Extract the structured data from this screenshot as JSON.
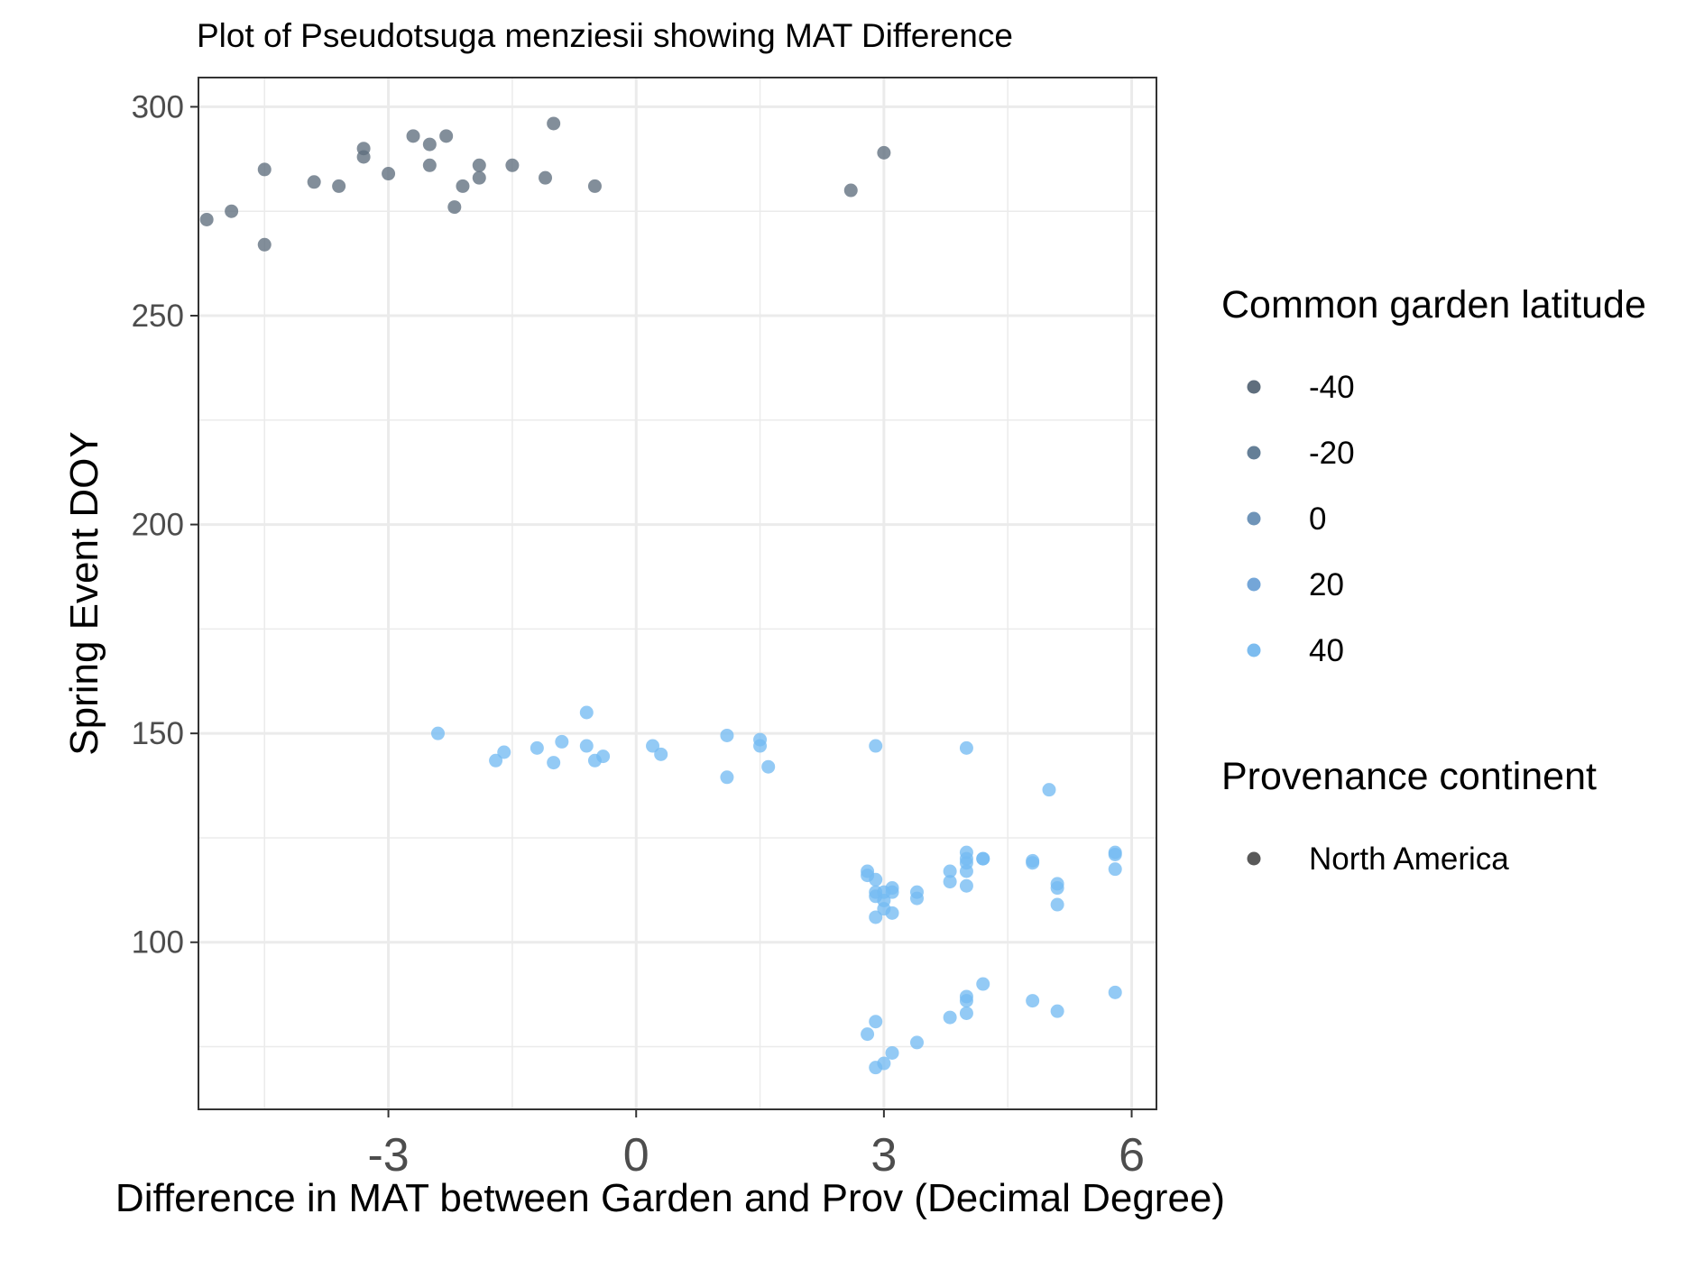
{
  "chart_data": {
    "type": "scatter",
    "title": "Plot of Pseudotsuga menziesii showing MAT Difference",
    "xlabel": "Difference in MAT between Garden and Prov (Decimal Degree)",
    "ylabel": "Spring Event DOY",
    "xlim": [
      -5.3,
      6.3
    ],
    "ylim": [
      60,
      307
    ],
    "x_ticks": [
      "-3",
      "0",
      "3",
      "6"
    ],
    "x_tick_values": [
      -3,
      0,
      3,
      6
    ],
    "y_ticks": [
      "100",
      "150",
      "200",
      "250",
      "300"
    ],
    "y_tick_values": [
      100,
      150,
      200,
      250,
      300
    ],
    "grid": true,
    "legend_position": "right",
    "legends": [
      {
        "title": "Common garden latitude",
        "entries": [
          {
            "label": "-40",
            "color": "#5f6e7d"
          },
          {
            "label": "-20",
            "color": "#657f97"
          },
          {
            "label": "0",
            "color": "#6f94b8"
          },
          {
            "label": "20",
            "color": "#74a6d8"
          },
          {
            "label": "40",
            "color": "#7cbcef"
          }
        ]
      },
      {
        "title": "Provenance continent",
        "entries": [
          {
            "label": "North America",
            "color": "#595959"
          }
        ]
      }
    ],
    "series": [
      {
        "latitude": -40,
        "color": "#5f6e7d",
        "x": [
          -5.2,
          -4.9,
          -4.5,
          -4.5,
          -3.9,
          -3.6,
          -3.3,
          -3.3,
          -3.0,
          -2.7,
          -2.5,
          -2.5,
          -2.3,
          -2.2,
          -2.1,
          -1.9,
          -1.9,
          -1.5,
          -1.1,
          -1.0,
          -0.5,
          2.6,
          3.0
        ],
        "y": [
          273,
          275,
          285,
          267,
          282,
          281,
          290,
          288,
          284,
          293,
          291,
          286,
          293,
          276,
          281,
          286,
          283,
          286,
          283,
          296,
          281,
          280,
          289
        ]
      },
      {
        "latitude": 40,
        "color": "#74bbf2",
        "x": [
          -2.4,
          -1.7,
          -1.6,
          -1.2,
          -1.0,
          -0.9,
          -0.6,
          -0.6,
          -0.5,
          -0.4,
          0.2,
          0.3,
          1.1,
          1.1,
          1.5,
          1.5,
          1.6,
          2.9,
          4.0,
          5.0,
          2.8,
          2.8,
          2.9,
          2.9,
          2.9,
          2.9,
          3.0,
          3.0,
          3.0,
          3.1,
          3.1,
          3.1,
          3.4,
          3.4,
          3.8,
          3.8,
          4.0,
          4.0,
          4.0,
          4.0,
          4.0,
          4.2,
          4.2,
          4.8,
          4.8,
          5.1,
          5.1,
          5.1,
          5.8,
          5.8,
          5.8,
          2.8,
          2.9,
          2.9,
          3.0,
          3.1,
          3.4,
          3.8,
          4.0,
          4.0,
          4.0,
          4.2,
          4.8,
          5.1,
          5.8
        ],
        "y": [
          150,
          143.5,
          145.5,
          146.5,
          143,
          148,
          155,
          147,
          143.5,
          144.5,
          147,
          145,
          149.5,
          139.5,
          148.5,
          147,
          142,
          147,
          146.5,
          136.5,
          117,
          116,
          115,
          112,
          111,
          106,
          110,
          112,
          108,
          113,
          112,
          107,
          112,
          110.5,
          117,
          114.5,
          121.5,
          119,
          120,
          117,
          113.5,
          120,
          120,
          119.5,
          119,
          114,
          113,
          109,
          121.5,
          121,
          117.5,
          78,
          81,
          70,
          71,
          73.5,
          76,
          82,
          87,
          86,
          83,
          90,
          86,
          83.5,
          88
        ]
      }
    ]
  }
}
